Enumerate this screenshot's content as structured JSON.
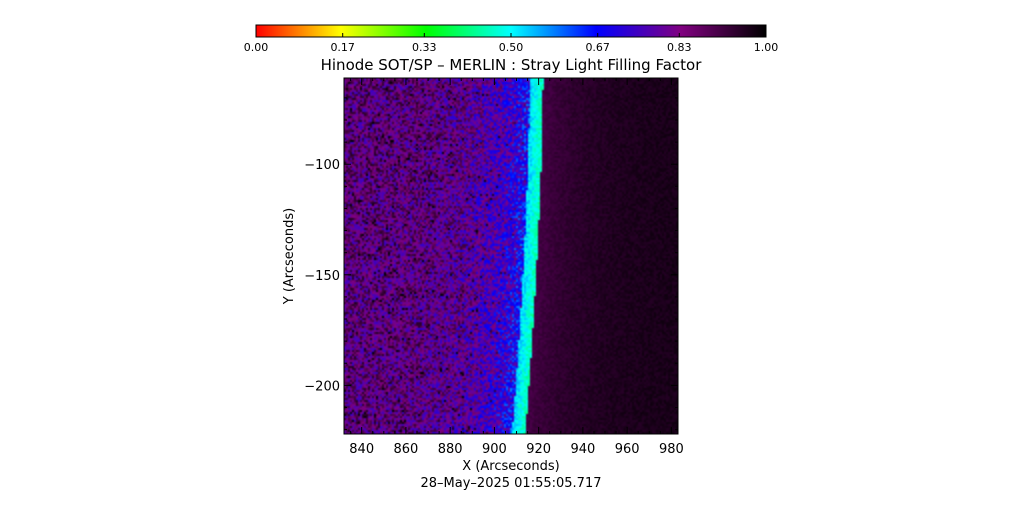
{
  "chart_data": {
    "type": "heatmap",
    "title": "Hinode SOT/SP – MERLIN : Stray Light Filling Factor",
    "xlabel": "X (Arcseconds)",
    "ylabel": "Y (Arcseconds)",
    "timestamp": "28–May–2025 01:55:05.717",
    "xlim": [
      832,
      983
    ],
    "ylim": [
      -222,
      -61
    ],
    "x_ticks": [
      840,
      860,
      880,
      900,
      920,
      940,
      960,
      980
    ],
    "x_tick_labels": [
      "840",
      "860",
      "880",
      "900",
      "920",
      "940",
      "960",
      "980"
    ],
    "y_ticks": [
      -100,
      -150,
      -200
    ],
    "y_tick_labels": [
      "−100",
      "−150",
      "−200"
    ],
    "colorbar": {
      "range": [
        0.0,
        1.0
      ],
      "ticks": [
        0.0,
        0.17,
        0.33,
        0.5,
        0.67,
        0.83,
        1.0
      ],
      "tick_labels": [
        "0.00",
        "0.17",
        "0.33",
        "0.50",
        "0.67",
        "0.83",
        "1.00"
      ],
      "colormap": [
        "#ff0000",
        "#ffff00",
        "#00ff00",
        "#00ffff",
        "#0000ff",
        "#800080",
        "#000000"
      ]
    },
    "limb": {
      "x_at_top": 922,
      "x_at_bottom": 914,
      "disk_filling_factor_range": [
        0.6,
        0.85
      ],
      "limb_band_filling_factor": 0.45,
      "off_limb_filling_factor": 0.97
    }
  }
}
